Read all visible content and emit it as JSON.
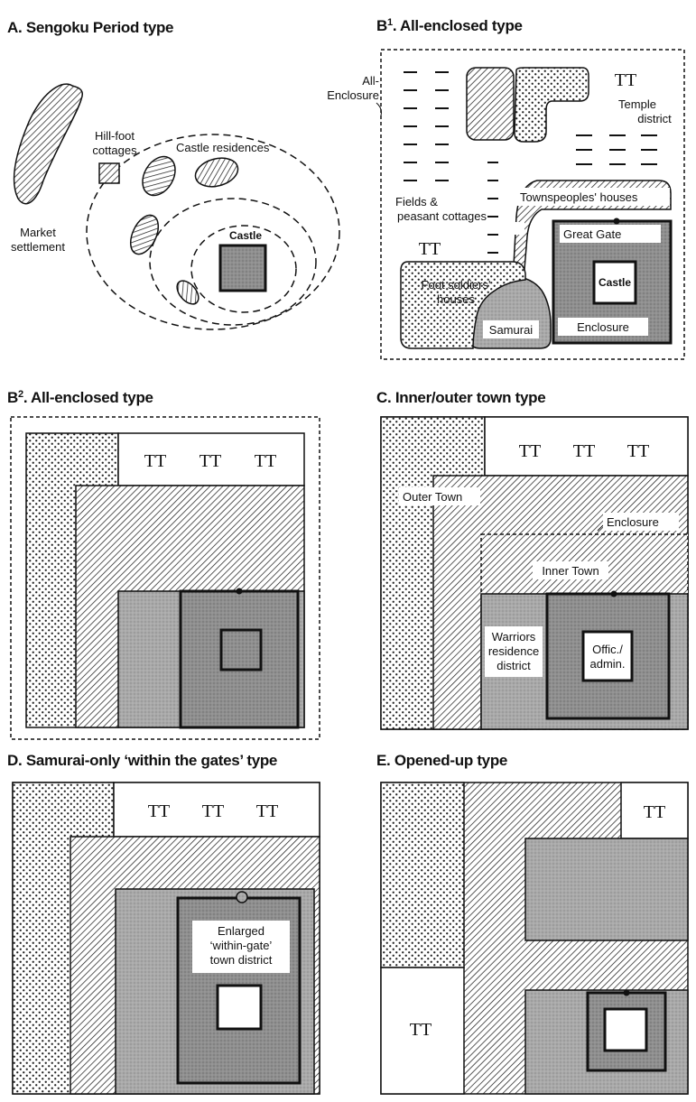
{
  "panels": {
    "a": {
      "title": "A. Sengoku Period type",
      "labels": {
        "hill_foot_1": "Hill-foot",
        "hill_foot_2": "cottages",
        "castle_residences": "Castle residences",
        "castle": "Castle",
        "market_1": "Market",
        "market_2": "settlement"
      }
    },
    "b1": {
      "title_prefix": "B",
      "title_sup": "1",
      "title_suffix": ". All-enclosed type",
      "labels": {
        "all_1": "All-",
        "all_2": "Enclosure",
        "temple_1": "Temple",
        "temple_2": "district",
        "fields_1": "Fields &",
        "fields_2": "peasant cottages",
        "townspeople": "Townspeoples' houses",
        "great_gate": "Great Gate",
        "foot_1": "Foot soldiers'",
        "foot_2": "houses",
        "castle": "Castle",
        "samurai": "Samurai",
        "enclosure": "Enclosure"
      }
    },
    "b2": {
      "title_prefix": "B",
      "title_sup": "2",
      "title_suffix": ". All-enclosed type"
    },
    "c": {
      "title": "C. Inner/outer town type",
      "labels": {
        "outer_town": "Outer Town",
        "enclosure": "Enclosure",
        "inner_town": "Inner Town",
        "warriors_1": "Warriors",
        "warriors_2": "residence",
        "warriors_3": "district",
        "offic_1": "Offic./",
        "offic_2": "admin."
      }
    },
    "d": {
      "title": "D. Samurai-only ‘within the gates’ type",
      "labels": {
        "enlarged_1": "Enlarged",
        "enlarged_2": "‘within-gate’",
        "enlarged_3": "town district"
      }
    },
    "e": {
      "title": "E. Opened-up type"
    }
  },
  "temple_symbol": "TT",
  "colors": {
    "ink": "#111111",
    "samurai_gray": "#a9a9a9",
    "castle_gray": "#8f8f8f",
    "background": "#ffffff"
  }
}
